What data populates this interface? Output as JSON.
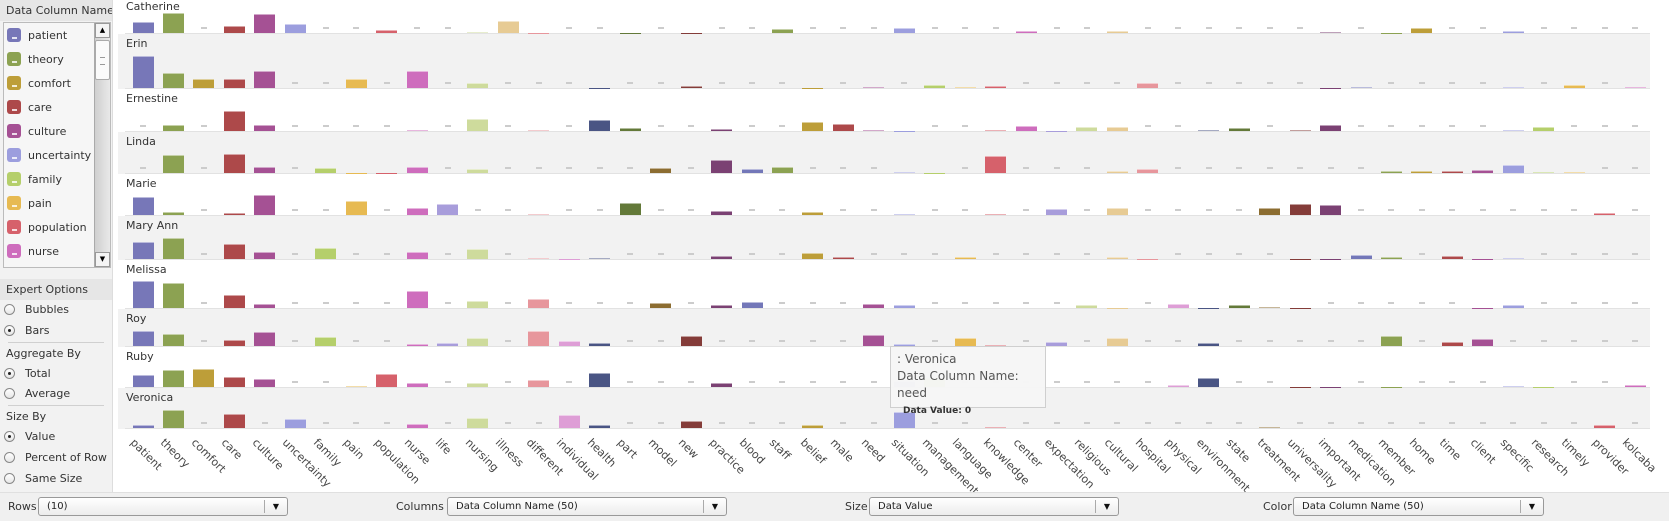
{
  "left_panel": {
    "legend_title": "Data Column Name",
    "expert_title": "Expert Options",
    "chart_type": {
      "options": [
        "Bubbles",
        "Bars"
      ],
      "selected": "Bars"
    },
    "aggregate": {
      "label": "Aggregate By",
      "options": [
        "Total",
        "Average"
      ],
      "selected": "Total"
    },
    "size_by": {
      "label": "Size By",
      "options": [
        "Value",
        "Percent of Row",
        "Same Size"
      ],
      "selected": "Value"
    }
  },
  "bottom_bar": {
    "rows_label": "Rows",
    "rows_value": "(10)",
    "columns_label": "Columns",
    "columns_value": "Data Column Name (50)",
    "size_label": "Size",
    "size_value": "Data Value",
    "color_label": "Color",
    "color_value": "Data Column Name (50)"
  },
  "tooltip": {
    "row": ": Veronica",
    "column": "Data Column Name: need",
    "value": "Data Value: 0"
  },
  "chart_data": {
    "type": "bar",
    "title": "",
    "xlabel": "Data Column Name",
    "ylabel": "Data Value",
    "rows": [
      "Catherine",
      "Erin",
      "Ernestine",
      "Linda",
      "Marie",
      "Mary Ann",
      "Melissa",
      "Roy",
      "Ruby",
      "Veronica"
    ],
    "categories": [
      "patient",
      "theory",
      "comfort",
      "care",
      "culture",
      "uncertainty",
      "family",
      "pain",
      "population",
      "nurse",
      "life",
      "nursing",
      "illness",
      "different",
      "individual",
      "health",
      "part",
      "model",
      "new",
      "practice",
      "blood",
      "staff",
      "belief",
      "male",
      "need",
      "situation",
      "management",
      "language",
      "knowledge",
      "center",
      "expectation",
      "religious",
      "cultural",
      "hospital",
      "physical",
      "environment",
      "state",
      "treatment",
      "universality",
      "important",
      "medication",
      "member",
      "home",
      "time",
      "client",
      "specific",
      "research",
      "timely",
      "provider",
      "kolcaba"
    ],
    "colors": [
      "#7777b8",
      "#8ca252",
      "#bd9e39",
      "#ad494a",
      "#a55194",
      "#9c9ede",
      "#b5cf6b",
      "#e7ba52",
      "#d6616b",
      "#ce6dbd",
      "#a89ddb",
      "#cedb9c",
      "#e7cb94",
      "#e7969c",
      "#de9ed6",
      "#4a5584",
      "#637939",
      "#8c6d31",
      "#843c39",
      "#7b4173",
      "#7377b8",
      "#8ca252",
      "#bd9e39",
      "#ad494a",
      "#a55194",
      "#9c9ede",
      "#b5cf6b",
      "#e7ba52",
      "#d6616b",
      "#ce6dbd",
      "#a89ddb",
      "#cedb9c",
      "#e7cb94",
      "#e7969c",
      "#de9ed6",
      "#4a5584",
      "#637939",
      "#8c6d31",
      "#843c39",
      "#7b4173",
      "#7377b8",
      "#8ca252",
      "#bd9e39",
      "#ad494a",
      "#a55194",
      "#9c9ede",
      "#b5cf6b",
      "#e7ba52",
      "#d6616b",
      "#ce6dbd"
    ],
    "series": [
      {
        "name": "Catherine",
        "values": [
          11,
          20,
          0,
          7,
          19,
          9,
          0,
          0,
          3,
          0,
          0,
          1,
          12,
          0.3,
          0,
          0,
          0.3,
          0,
          0.3,
          0,
          0,
          4,
          0,
          0,
          0,
          5,
          0,
          0,
          0,
          2,
          0,
          0,
          2,
          0,
          0,
          0,
          0,
          0,
          0,
          1,
          0,
          0.3,
          5,
          0,
          0,
          2,
          0,
          0,
          0,
          0
        ]
      },
      {
        "name": "Erin",
        "values": [
          32,
          15,
          9,
          9,
          17,
          0,
          0,
          9,
          0,
          17,
          0,
          5,
          0,
          0,
          0,
          0.5,
          0,
          0,
          2,
          0,
          0,
          0,
          0.5,
          0,
          1.3,
          0,
          3,
          1.5,
          2.5,
          0,
          0,
          0,
          0,
          5,
          0,
          0,
          0,
          0,
          0,
          0.5,
          1.3,
          0,
          0,
          0,
          0,
          1.3,
          0,
          3.3,
          0,
          1.5
        ]
      },
      {
        "name": "Ernestine",
        "values": [
          0,
          6,
          0,
          20,
          6,
          0,
          0,
          0,
          0,
          1.3,
          0,
          12.3,
          0,
          1.3,
          0,
          11.3,
          3.3,
          0,
          0,
          2.3,
          0,
          0,
          9.3,
          7.3,
          1.3,
          0.3,
          0,
          0,
          1.3,
          5.3,
          0.3,
          3.7,
          4,
          0,
          0,
          0.7,
          3.3,
          0,
          0.7,
          6,
          0,
          0,
          0,
          0,
          0,
          1.5,
          4.3,
          0,
          0,
          0
        ]
      },
      {
        "name": "Linda",
        "values": [
          0,
          18,
          0,
          19,
          5.7,
          0,
          5,
          0.3,
          0.3,
          6,
          0,
          4.3,
          0,
          0,
          0,
          0,
          0,
          5.3,
          0,
          13.3,
          4.3,
          6.3,
          0,
          0,
          0,
          0.7,
          0.3,
          0,
          17.3,
          0,
          0,
          0,
          2,
          4.3,
          0,
          0,
          0,
          0,
          0,
          0,
          0,
          2.3,
          2,
          2,
          3.3,
          8.3,
          1,
          1,
          0,
          0
        ]
      },
      {
        "name": "Marie",
        "values": [
          18,
          3.3,
          0,
          2.3,
          20,
          0,
          0,
          14.3,
          0,
          7.3,
          11,
          0,
          0,
          1,
          0,
          0,
          12,
          0,
          0,
          4.3,
          0,
          0,
          3.3,
          0,
          0,
          1.3,
          0,
          0,
          1,
          0,
          5.7,
          0,
          6.7,
          0,
          0,
          0,
          0,
          7,
          11,
          10.3,
          0,
          0,
          0,
          0,
          0,
          0,
          0,
          0,
          2,
          0
        ]
      },
      {
        "name": "Mary Ann",
        "values": [
          17.3,
          20.7,
          0,
          15.3,
          6.7,
          0,
          11.3,
          0,
          0,
          7.3,
          0,
          10.3,
          0,
          0.7,
          0.3,
          1.3,
          0,
          0,
          0,
          2.7,
          0,
          0,
          6.3,
          2,
          0,
          0,
          0,
          1.7,
          0,
          0,
          0,
          0,
          1.7,
          0.5,
          0,
          0,
          0,
          0,
          0.3,
          0.3,
          4.3,
          2.3,
          0,
          2.7,
          0.3,
          1.3,
          0,
          0,
          0,
          0
        ]
      },
      {
        "name": "Melissa",
        "values": [
          27,
          25,
          0,
          13.3,
          3.7,
          0,
          0,
          0,
          0,
          16.7,
          0,
          6.7,
          0,
          9.3,
          0,
          0,
          0,
          5.3,
          0,
          3,
          5.7,
          0,
          0,
          0,
          4.3,
          3.3,
          0,
          0,
          0,
          0,
          0,
          2.7,
          0.5,
          0,
          4,
          0.5,
          3,
          1,
          0.3,
          0,
          0,
          0,
          0,
          0,
          0.3,
          3,
          0,
          0,
          0,
          0
        ]
      },
      {
        "name": "Roy",
        "values": [
          15,
          12,
          0,
          5.7,
          14.3,
          0,
          9.3,
          0,
          0,
          2,
          3,
          8.3,
          0,
          15,
          4.7,
          3,
          0,
          0,
          10,
          0,
          0,
          0,
          0,
          0,
          10.7,
          2,
          0,
          8,
          1,
          0,
          4,
          0,
          7.7,
          0,
          0,
          2.7,
          0,
          0,
          0,
          0,
          0,
          10,
          0,
          4,
          7,
          0,
          0,
          0,
          0,
          0
        ]
      },
      {
        "name": "Ruby",
        "values": [
          12.3,
          17,
          18,
          10,
          8,
          0,
          0,
          1,
          13.3,
          4.3,
          0,
          3.7,
          0,
          7.3,
          0,
          13.7,
          0,
          0,
          0,
          3.7,
          0,
          0,
          0,
          0,
          0,
          6,
          8.7,
          0,
          0,
          0,
          0,
          0,
          0,
          0,
          2,
          9,
          0,
          0,
          0.3,
          0.3,
          0,
          0.3,
          0,
          0,
          0,
          0.7,
          0.3,
          0,
          0,
          2.5
        ]
      },
      {
        "name": "Veronica",
        "values": [
          3.3,
          18.3,
          0,
          13.7,
          0,
          9.3,
          0,
          0,
          0,
          4.3,
          0,
          9.7,
          0,
          0,
          12.7,
          2.7,
          0,
          0,
          7,
          0,
          0,
          0,
          2.7,
          0,
          0,
          15.7,
          0,
          0,
          1,
          0,
          0,
          0,
          0,
          0,
          0,
          0,
          0,
          1,
          0,
          0,
          0,
          0,
          0,
          0,
          0,
          0,
          0,
          0,
          3,
          0
        ]
      }
    ]
  }
}
